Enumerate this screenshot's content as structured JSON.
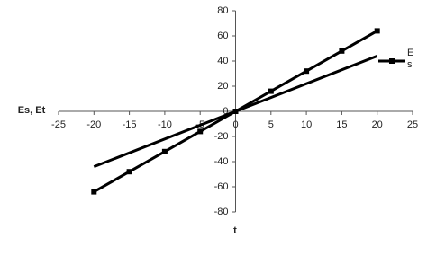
{
  "chart_data": {
    "type": "line",
    "x_label": "t",
    "y_label": "Es, Et",
    "xlim": [
      -25,
      25
    ],
    "xticks": [
      -25,
      -20,
      -15,
      -10,
      -5,
      0,
      5,
      10,
      15,
      20,
      25
    ],
    "ylim": [
      -80,
      80
    ],
    "yticks": [
      -80,
      -60,
      -40,
      -20,
      0,
      20,
      40,
      60,
      80
    ],
    "series": [
      {
        "name": "Es",
        "color": "#000000",
        "marker": "square",
        "x": [
          -20,
          -15,
          -10,
          -5,
          0,
          5,
          10,
          15,
          20
        ],
        "values": [
          -64,
          -48,
          -32,
          -16,
          0,
          16,
          32,
          48,
          64
        ]
      },
      {
        "color": "#000000",
        "x": [
          -20,
          20
        ],
        "values": [
          -44,
          44
        ]
      }
    ]
  }
}
